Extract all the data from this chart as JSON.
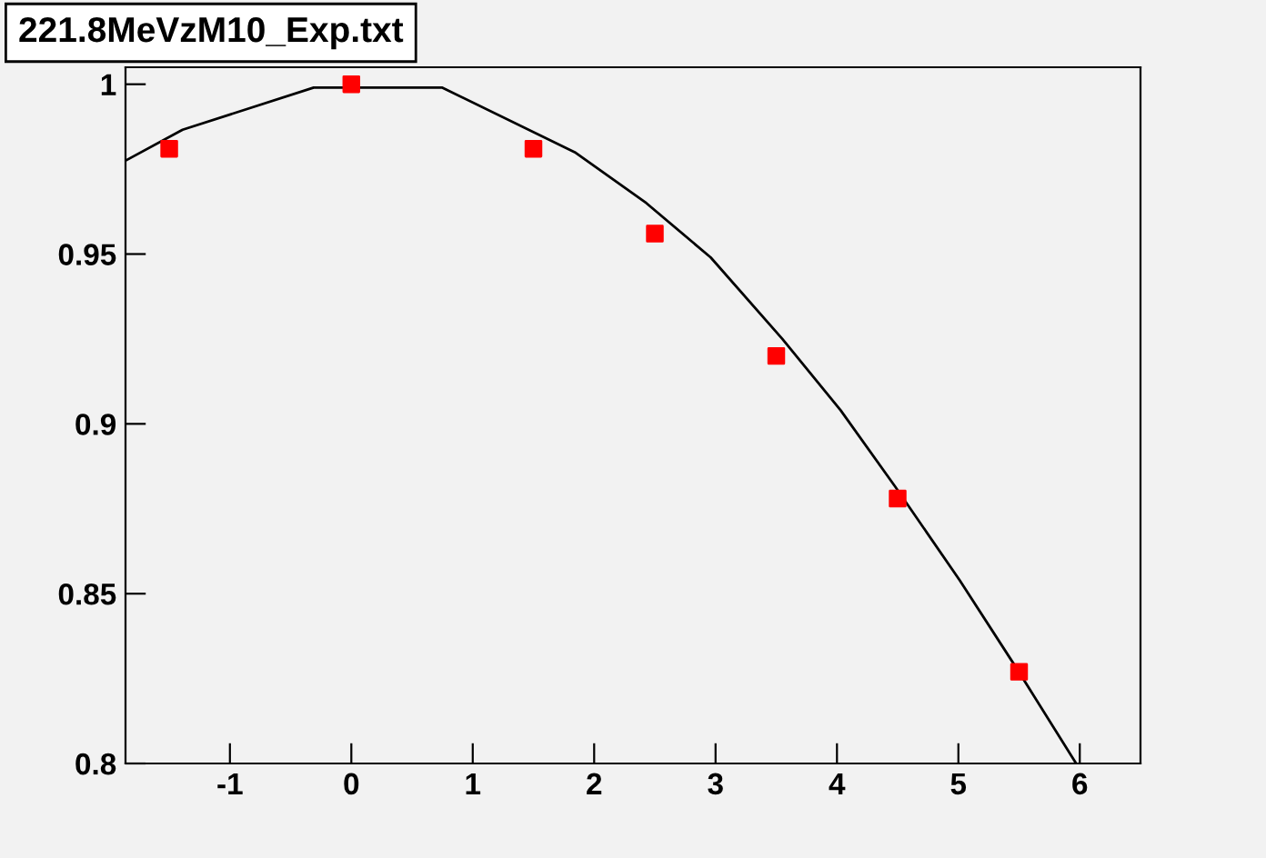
{
  "chart_data": {
    "type": "scatter",
    "title": "221.8MeVzM10_Exp.txt",
    "xlim": [
      -1.86,
      6.5
    ],
    "ylim": [
      0.8,
      1.005
    ],
    "xticks": [
      -1,
      0,
      1,
      2,
      3,
      4,
      5,
      6
    ],
    "yticks": [
      0.8,
      0.85,
      0.9,
      0.95,
      1
    ],
    "grid": false,
    "legend": false,
    "series": [
      {
        "type": "line",
        "color": "#000000",
        "marker": "none",
        "line_style": "solid",
        "x": [
          -1.86,
          -1.39,
          -0.31,
          0.75,
          1.84,
          2.43,
          2.96,
          3.55,
          4.03,
          4.48,
          5.01,
          5.48,
          5.97
        ],
        "values": [
          0.9775,
          0.9866,
          0.999,
          0.999,
          0.98,
          0.965,
          0.949,
          0.925,
          0.904,
          0.8815,
          0.854,
          0.828,
          0.8
        ]
      },
      {
        "color": "#ff0000",
        "marker": "square",
        "x": [
          -1.5,
          0,
          1.5,
          2.5,
          3.5,
          4.5,
          5.5
        ],
        "values": [
          0.981,
          1.0,
          0.981,
          0.956,
          0.92,
          0.878,
          0.827
        ]
      }
    ]
  }
}
